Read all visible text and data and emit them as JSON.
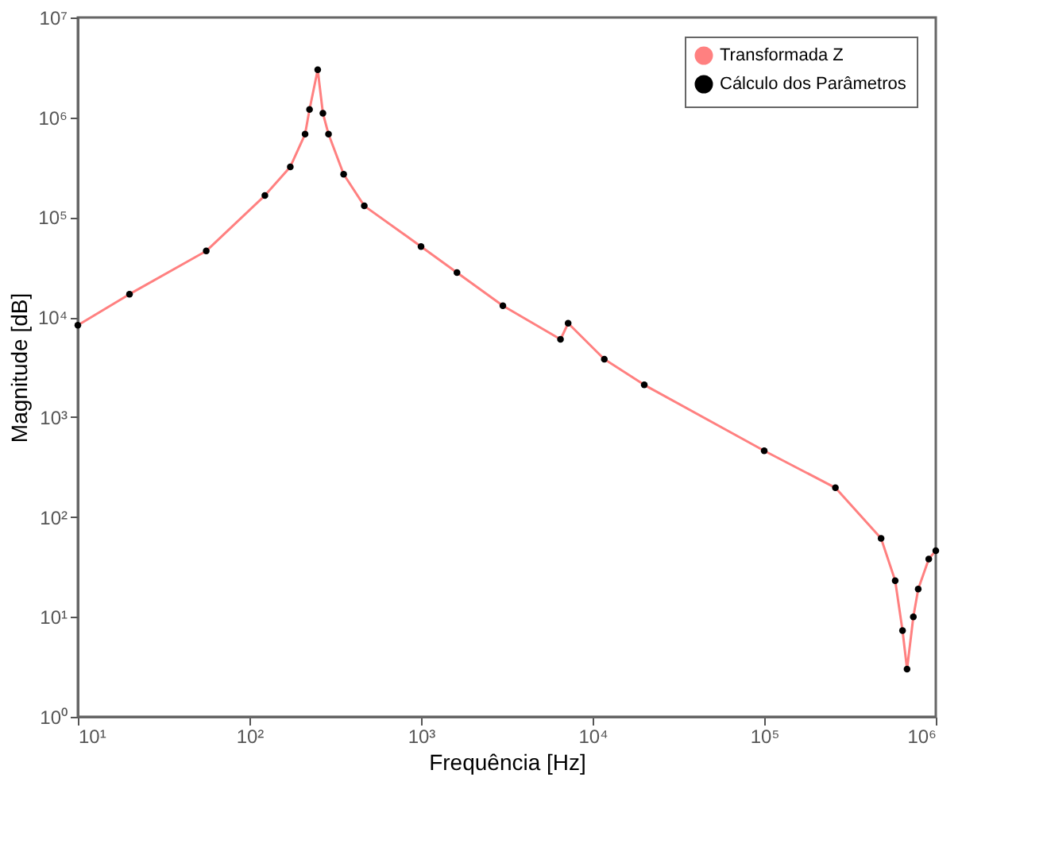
{
  "chart_data": {
    "type": "line",
    "xlabel": "Frequência [Hz]",
    "ylabel": "Magnitude [dB]",
    "log": "xy",
    "grid": false,
    "legend": "top right",
    "xlim": [
      10,
      1000000
    ],
    "ylim": [
      1,
      10000000
    ],
    "xticks": [
      {
        "value": 10,
        "label": "10¹"
      },
      {
        "value": 100,
        "label": "10²"
      },
      {
        "value": 1000,
        "label": "10³"
      },
      {
        "value": 10000,
        "label": "10⁴"
      },
      {
        "value": 100000,
        "label": "10⁵"
      },
      {
        "value": 1000000,
        "label": "10⁶"
      }
    ],
    "yticks": [
      {
        "value": 1,
        "label": "10⁰"
      },
      {
        "value": 10,
        "label": "10¹"
      },
      {
        "value": 100,
        "label": "10²"
      },
      {
        "value": 1000,
        "label": "10³"
      },
      {
        "value": 10000,
        "label": "10⁴"
      },
      {
        "value": 100000,
        "label": "10⁵"
      },
      {
        "value": 1000000,
        "label": "10⁶"
      },
      {
        "value": 10000000,
        "label": "10⁷"
      }
    ],
    "series": [
      {
        "name": "Transformada Z",
        "type": "line",
        "color": "#ff8080",
        "line_style": "solid",
        "marker": "none",
        "x": [
          10,
          20,
          56,
          123,
          173,
          211,
          224,
          250,
          268,
          289,
          354,
          467,
          1000,
          1620,
          3000,
          6500,
          7200,
          11700,
          20000,
          100000,
          260000,
          480000,
          580000,
          640000,
          680000,
          740000,
          790000,
          910000,
          1000000
        ],
        "values": [
          8300,
          17000,
          46000,
          165000,
          320000,
          680000,
          1200000,
          3000000,
          1100000,
          680000,
          270000,
          130000,
          51000,
          28000,
          13000,
          6000,
          8700,
          3800,
          2100,
          460,
          196,
          61,
          23,
          7.3,
          3.0,
          10,
          19,
          38,
          46
        ]
      },
      {
        "name": "Cálculo dos Parâmetros",
        "type": "scatter",
        "color": "#000000",
        "marker": "circle",
        "x": [
          10,
          20,
          56,
          123,
          173,
          211,
          224,
          250,
          268,
          289,
          354,
          467,
          1000,
          1620,
          3000,
          6500,
          7200,
          11700,
          20000,
          100000,
          260000,
          480000,
          580000,
          640000,
          680000,
          740000,
          790000,
          910000,
          1000000
        ],
        "values": [
          8300,
          17000,
          46000,
          165000,
          320000,
          680000,
          1200000,
          3000000,
          1100000,
          680000,
          270000,
          130000,
          51000,
          28000,
          13000,
          6000,
          8700,
          3800,
          2100,
          460,
          196,
          61,
          23,
          7.3,
          3.0,
          10,
          19,
          38,
          46
        ]
      }
    ]
  }
}
